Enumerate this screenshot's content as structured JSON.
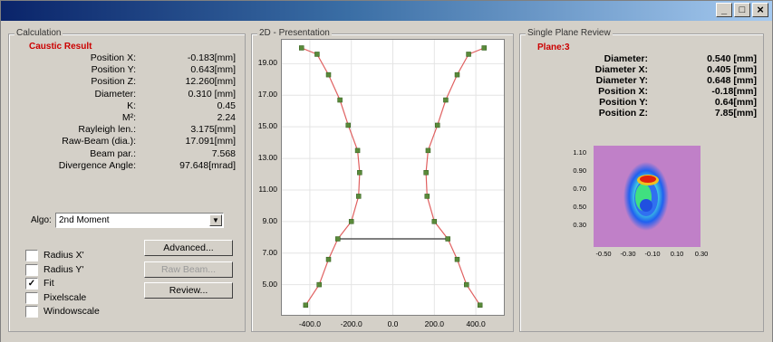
{
  "window": {
    "controls": [
      "_",
      "□",
      "×"
    ]
  },
  "calculation": {
    "group_title": "Calculation",
    "subtitle": "Caustic Result",
    "rows": [
      {
        "label": "Position X:",
        "value": "-0.183[mm]"
      },
      {
        "label": "Position Y:",
        "value": "0.643[mm]"
      },
      {
        "label": "Position Z:",
        "value": "12.260[mm]"
      },
      {
        "label": "Diameter:",
        "value": "0.310 [mm]"
      },
      {
        "label": "K:",
        "value": "0.45"
      },
      {
        "label": "M²:",
        "value": "2.24"
      },
      {
        "label": "Rayleigh len.:",
        "value": "3.175[mm]"
      },
      {
        "label": "Raw-Beam (dia.):",
        "value": "17.091[mm]"
      },
      {
        "label": "Beam par.:",
        "value": "7.568"
      },
      {
        "label": "Divergence Angle:",
        "value": "97.648[mrad]"
      }
    ],
    "algo_label": "Algo:",
    "algo_value": "2nd Moment",
    "checkboxes": [
      {
        "label": "Radius X'",
        "checked": false
      },
      {
        "label": "Radius Y'",
        "checked": false
      },
      {
        "label": "Fit",
        "checked": true
      },
      {
        "label": "Pixelscale",
        "checked": false
      },
      {
        "label": "Windowscale",
        "checked": false
      }
    ],
    "buttons": {
      "advanced": "Advanced...",
      "raw_beam": "Raw Beam...",
      "review": "Review..."
    }
  },
  "presentation": {
    "group_title": "2D - Presentation"
  },
  "chart_data": {
    "type": "scatter",
    "title": "",
    "xlabel": "",
    "ylabel": "",
    "xlim": [
      -500,
      500
    ],
    "ylim": [
      3.2,
      20.4
    ],
    "x_ticks": [
      "-400.0",
      "-200.0",
      "0.0",
      "200.0",
      "400.0"
    ],
    "x_tick_values": [
      -400,
      -200,
      0,
      200,
      400
    ],
    "y_ticks": [
      "5.00",
      "7.00",
      "9.00",
      "11.00",
      "13.00",
      "15.00",
      "17.00",
      "19.00"
    ],
    "y_tick_values": [
      5,
      7,
      9,
      11,
      13,
      15,
      17,
      19
    ],
    "grid": true,
    "series": [
      {
        "values": [
          [
            -440,
            20.0
          ],
          [
            -365,
            19.6
          ],
          [
            -310,
            18.3
          ],
          [
            -255,
            16.7
          ],
          [
            -215,
            15.1
          ],
          [
            -170,
            13.5
          ],
          [
            -160,
            12.1
          ],
          [
            -165,
            10.6
          ],
          [
            -200,
            9.0
          ],
          [
            -265,
            7.9
          ],
          [
            -310,
            6.6
          ],
          [
            -355,
            5.0
          ],
          [
            -420,
            3.7
          ]
        ]
      },
      {
        "values": [
          [
            440,
            20.0
          ],
          [
            365,
            19.6
          ],
          [
            310,
            18.3
          ],
          [
            255,
            16.7
          ],
          [
            215,
            15.1
          ],
          [
            170,
            13.5
          ],
          [
            160,
            12.1
          ],
          [
            165,
            10.6
          ],
          [
            200,
            9.0
          ],
          [
            265,
            7.9
          ],
          [
            310,
            6.6
          ],
          [
            355,
            5.0
          ],
          [
            420,
            3.7
          ]
        ]
      }
    ],
    "fit_color": "#e06060",
    "point_color": "#5a8a3a",
    "waist_line": {
      "x": [
        -265,
        265
      ],
      "y": 7.9
    }
  },
  "single_plane": {
    "group_title": "Single Plane Review",
    "subtitle": "Plane:3",
    "rows": [
      {
        "label": "Diameter:",
        "value": "0.540 [mm]"
      },
      {
        "label": "Diameter X:",
        "value": "0.405 [mm]"
      },
      {
        "label": "Diameter Y:",
        "value": "0.648 [mm]"
      },
      {
        "label": "Position X:",
        "value": "-0.18[mm]"
      },
      {
        "label": "Position Y:",
        "value": "0.64[mm]"
      },
      {
        "label": "Position Z:",
        "value": "7.85[mm]"
      }
    ],
    "heatmap": {
      "y_ticks": [
        "1.10",
        "0.90",
        "0.70",
        "0.50",
        "0.30"
      ],
      "x_ticks": [
        "-0.50",
        "-0.30",
        "-0.10",
        "0.10",
        "0.30"
      ]
    }
  }
}
